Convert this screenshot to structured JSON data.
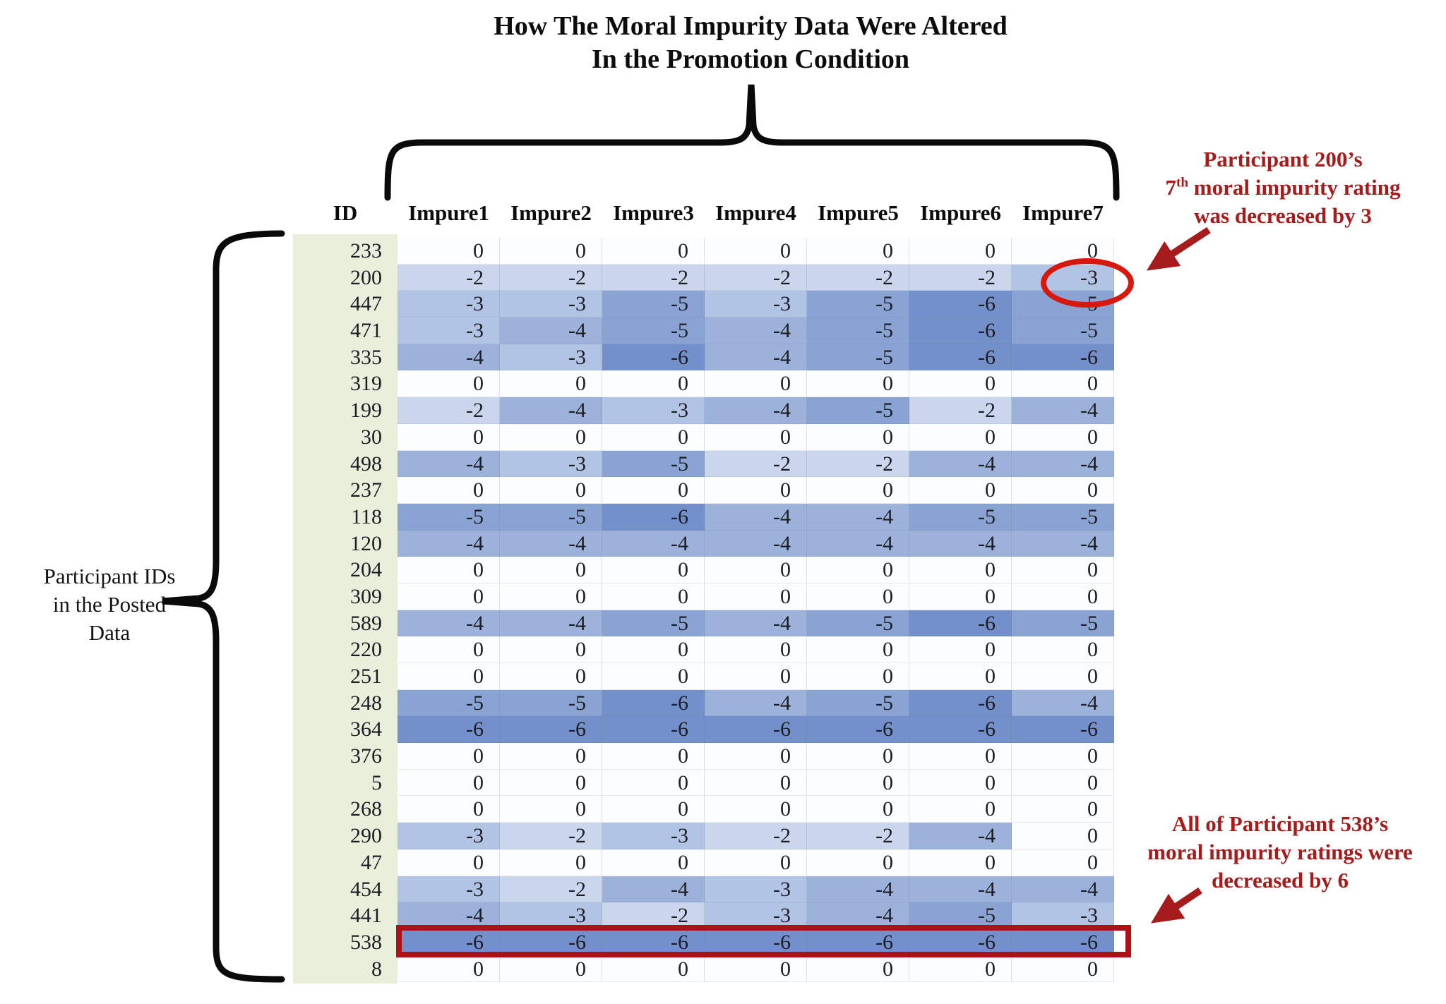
{
  "title": {
    "line1": "How The Moral Impurity Data Were Altered",
    "line2": "In the Promotion Condition"
  },
  "left_annotation": {
    "line1": "Participant IDs",
    "line2": "in the Posted",
    "line3": "Data"
  },
  "callout_200": {
    "line1": "Participant 200’s",
    "line2_num": "7",
    "line2_sup": "th",
    "line2_rest": " moral impurity rating",
    "line3": "was decreased by 3"
  },
  "callout_538": {
    "line1": "All of Participant 538’s",
    "line2": "moral impurity ratings were",
    "line3": "decreased by 6"
  },
  "colors": {
    "annotation_red": "#a61b1b",
    "circle_red": "#d6190e",
    "box_red": "#ad1015",
    "id_column_bg": "#e9efdb",
    "brace_black": "#0a0a0a"
  },
  "chart_data": {
    "type": "heatmap",
    "title": "How The Moral Impurity Data Were Altered In the Promotion Condition",
    "columns": [
      "ID",
      "Impure1",
      "Impure2",
      "Impure3",
      "Impure4",
      "Impure5",
      "Impure6",
      "Impure7"
    ],
    "rows": [
      {
        "id": "233",
        "values": [
          0,
          0,
          0,
          0,
          0,
          0,
          0
        ]
      },
      {
        "id": "200",
        "values": [
          -2,
          -2,
          -2,
          -2,
          -2,
          -2,
          -3
        ],
        "note": "Impure7 circled in red"
      },
      {
        "id": "447",
        "values": [
          -3,
          -3,
          -5,
          -3,
          -5,
          -6,
          -5
        ]
      },
      {
        "id": "471",
        "values": [
          -3,
          -4,
          -5,
          -4,
          -5,
          -6,
          -5
        ]
      },
      {
        "id": "335",
        "values": [
          -4,
          -3,
          -6,
          -4,
          -5,
          -6,
          -6
        ]
      },
      {
        "id": "319",
        "values": [
          0,
          0,
          0,
          0,
          0,
          0,
          0
        ]
      },
      {
        "id": "199",
        "values": [
          -2,
          -4,
          -3,
          -4,
          -5,
          -2,
          -4
        ]
      },
      {
        "id": "30",
        "values": [
          0,
          0,
          0,
          0,
          0,
          0,
          0
        ]
      },
      {
        "id": "498",
        "values": [
          -4,
          -3,
          -5,
          -2,
          -2,
          -4,
          -4
        ]
      },
      {
        "id": "237",
        "values": [
          0,
          0,
          0,
          0,
          0,
          0,
          0
        ]
      },
      {
        "id": "118",
        "values": [
          -5,
          -5,
          -6,
          -4,
          -4,
          -5,
          -5
        ]
      },
      {
        "id": "120",
        "values": [
          -4,
          -4,
          -4,
          -4,
          -4,
          -4,
          -4
        ]
      },
      {
        "id": "204",
        "values": [
          0,
          0,
          0,
          0,
          0,
          0,
          0
        ]
      },
      {
        "id": "309",
        "values": [
          0,
          0,
          0,
          0,
          0,
          0,
          0
        ]
      },
      {
        "id": "589",
        "values": [
          -4,
          -4,
          -5,
          -4,
          -5,
          -6,
          -5
        ]
      },
      {
        "id": "220",
        "values": [
          0,
          0,
          0,
          0,
          0,
          0,
          0
        ]
      },
      {
        "id": "251",
        "values": [
          0,
          0,
          0,
          0,
          0,
          0,
          0
        ]
      },
      {
        "id": "248",
        "values": [
          -5,
          -5,
          -6,
          -4,
          -5,
          -6,
          -4
        ]
      },
      {
        "id": "364",
        "values": [
          -6,
          -6,
          -6,
          -6,
          -6,
          -6,
          -6
        ]
      },
      {
        "id": "376",
        "values": [
          0,
          0,
          0,
          0,
          0,
          0,
          0
        ]
      },
      {
        "id": "5",
        "values": [
          0,
          0,
          0,
          0,
          0,
          0,
          0
        ]
      },
      {
        "id": "268",
        "values": [
          0,
          0,
          0,
          0,
          0,
          0,
          0
        ]
      },
      {
        "id": "290",
        "values": [
          -3,
          -2,
          -3,
          -2,
          -2,
          -4,
          0
        ]
      },
      {
        "id": "47",
        "values": [
          0,
          0,
          0,
          0,
          0,
          0,
          0
        ]
      },
      {
        "id": "454",
        "values": [
          -3,
          -2,
          -4,
          -3,
          -4,
          -4,
          -4
        ]
      },
      {
        "id": "441",
        "values": [
          -4,
          -3,
          -2,
          -3,
          -4,
          -5,
          -3
        ]
      },
      {
        "id": "538",
        "values": [
          -6,
          -6,
          -6,
          -6,
          -6,
          -6,
          -6
        ],
        "note": "entire row boxed in red"
      },
      {
        "id": "8",
        "values": [
          0,
          0,
          0,
          0,
          0,
          0,
          0
        ]
      }
    ],
    "value_color_scale": {
      "0": "#fcfdfe",
      "-2": "#c9d6ec",
      "-3": "#b2c4e3",
      "-4": "#9cb2db",
      "-5": "#89a3d3",
      "-6": "#7390ca"
    },
    "layout_hints": {
      "top_brace_groups": "Impure1 through Impure7 columns",
      "left_brace_groups": "all participant ID rows",
      "legend": "darker blue = larger decrease applied to the rating"
    }
  }
}
